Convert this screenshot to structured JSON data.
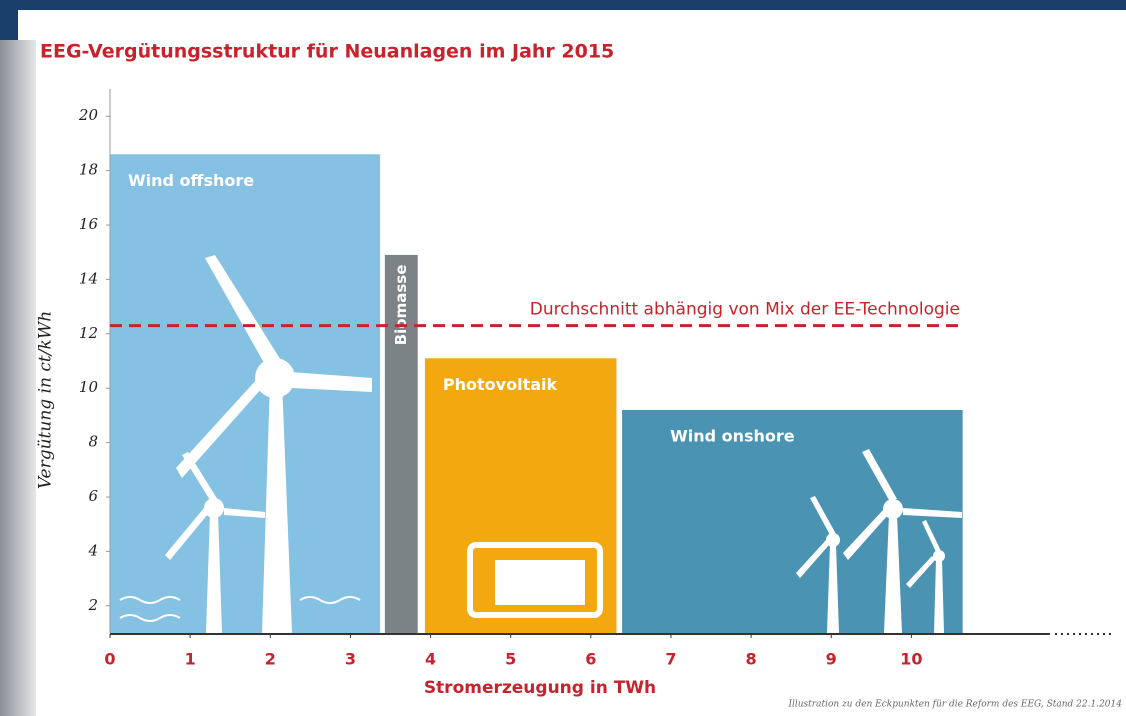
{
  "chart_data": {
    "type": "variable-width-bar",
    "title": "EEG-Vergütungsstruktur für Neuanlagen im Jahr 2015",
    "x_label": "Stromerzeugung in TWh",
    "y_label": "Vergütung in ct/kWh",
    "note": "Illustration zu den Eckpunkten für die Reform des EEG, Stand 22.1.2014",
    "categories": [
      "Wind offshore",
      "Biomasse",
      "Photovoltaik",
      "Wind onshore"
    ],
    "x_start": [
      0,
      3.43,
      3.93,
      6.39
    ],
    "x_end": [
      3.37,
      3.84,
      6.32,
      10.64
    ],
    "values": [
      18.6,
      14.9,
      11.1,
      9.2
    ],
    "colors": [
      "#84c1e3",
      "#7c8386",
      "#f4a80f",
      "#4b93b2"
    ],
    "reference_line": {
      "value": 12.3,
      "label": "Durchschnitt abhängig von Mix der EE-Technologie",
      "color": "#c8222c"
    },
    "xlim": [
      0,
      11.73
    ],
    "ylim": [
      1,
      21
    ],
    "xticks": [
      0,
      1,
      2,
      3,
      4,
      5,
      6,
      7,
      8,
      9,
      10
    ],
    "yticks": [
      2,
      4,
      6,
      8,
      10,
      12,
      14,
      16,
      18,
      20
    ],
    "grid": false
  }
}
